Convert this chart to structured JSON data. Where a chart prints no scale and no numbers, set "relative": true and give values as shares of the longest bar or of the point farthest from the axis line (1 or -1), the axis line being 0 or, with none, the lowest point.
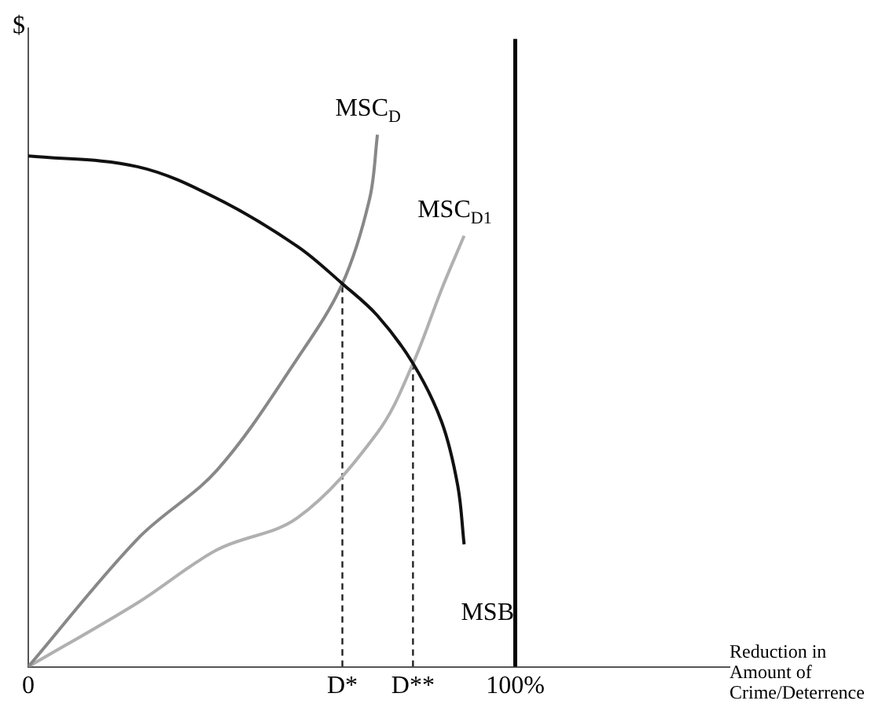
{
  "chart_data": {
    "type": "line",
    "relative": true,
    "xlabel": "Reduction in Amount of Crime/Deterrence",
    "ylabel": "$",
    "xlim": [
      0,
      144
    ],
    "xticks": [
      0,
      {
        "value": 64.5,
        "label": "D*"
      },
      {
        "value": 79,
        "label": "D**"
      },
      {
        "value": 100,
        "label": "100%"
      }
    ],
    "grid": false,
    "legend": false,
    "marker": "none",
    "series": [
      {
        "name": "MSB",
        "color": "#111111",
        "x": [
          0,
          22.4,
          38.8,
          55.3,
          64.5,
          71.7,
          79,
          84.9,
          88.2,
          89.5
        ],
        "values": [
          0.96,
          0.94,
          0.88,
          0.79,
          0.72,
          0.66,
          0.57,
          0.46,
          0.34,
          0.23
        ]
      },
      {
        "name": "MSC$_{D}$",
        "color": "#888888",
        "x": [
          0,
          22.4,
          38.8,
          55.3,
          64.5,
          70.1,
          71.7
        ],
        "values": [
          0,
          0.24,
          0.37,
          0.58,
          0.72,
          0.88,
          1.0
        ]
      },
      {
        "name": "MSC$_{D1}$",
        "color": "#b0b0b0",
        "x": [
          0,
          22.4,
          38.8,
          55.3,
          71.7,
          79,
          84.9,
          89.5
        ],
        "values": [
          0,
          0.12,
          0.22,
          0.28,
          0.44,
          0.57,
          0.71,
          0.81
        ]
      },
      {
        "color": "#222222",
        "line_style": "dashed",
        "x": [
          64.5,
          64.5
        ],
        "values": [
          0,
          0.72
        ]
      },
      {
        "color": "#222222",
        "line_style": "dashed",
        "x": [
          79,
          79
        ],
        "values": [
          0,
          0.57
        ]
      }
    ],
    "ref_lines": [
      {
        "axis": "x",
        "value": 100,
        "color": "#000000"
      }
    ]
  }
}
